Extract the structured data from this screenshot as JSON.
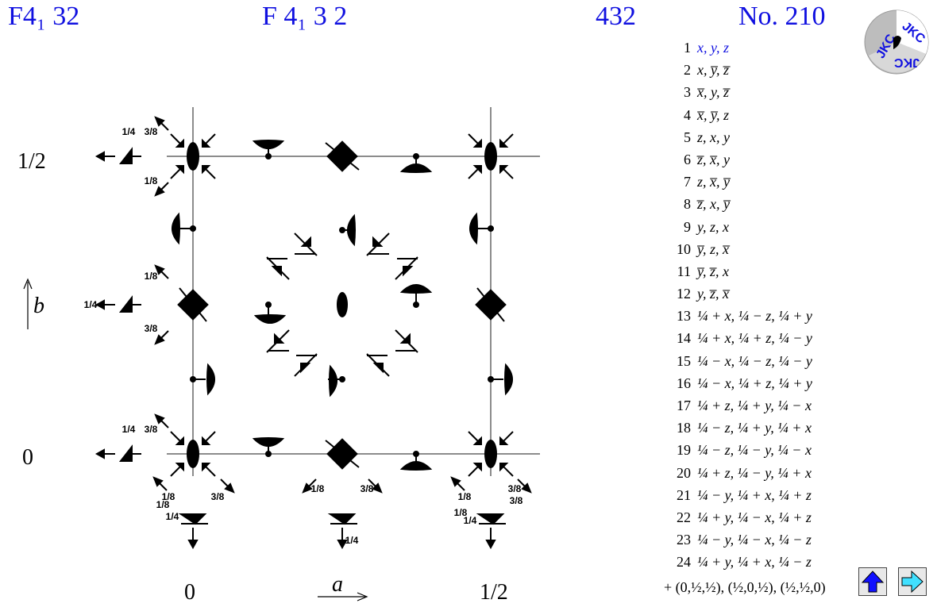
{
  "header": {
    "short_symbol": "F4₁ 32",
    "full_symbol": "F 4₁ 3 2",
    "point_group": "432",
    "number": "No. 210"
  },
  "logo": {
    "text": "JKC",
    "colors": [
      "#c0c0c0",
      "#1010e0"
    ]
  },
  "diagram": {
    "left_labels": [
      "1/2",
      "b",
      "0"
    ],
    "bottom_labels": [
      "0",
      "a",
      "1/2"
    ],
    "height_labels": [
      "1/4",
      "3/8",
      "1/8",
      "1/8",
      "3/8",
      "1/4",
      "1/4",
      "3/8",
      "1/8",
      "3/8",
      "1/8",
      "3/8",
      "1/8",
      "1/4",
      "3/8",
      "1/8",
      "1/4",
      "1/8",
      "3/8",
      "1/4"
    ]
  },
  "operations": [
    {
      "n": "1",
      "text": "x, y, z"
    },
    {
      "n": "2",
      "text": "x, y̅, z̅"
    },
    {
      "n": "3",
      "text": "x̅, y, z̅"
    },
    {
      "n": "4",
      "text": "x̅, y̅, z"
    },
    {
      "n": "5",
      "text": "z, x, y"
    },
    {
      "n": "6",
      "text": "z̅, x̅, y"
    },
    {
      "n": "7",
      "text": "z, x̅, y̅"
    },
    {
      "n": "8",
      "text": "z̅, x, y̅"
    },
    {
      "n": "9",
      "text": "y, z, x"
    },
    {
      "n": "10",
      "text": "y̅, z, x̅"
    },
    {
      "n": "11",
      "text": "y̅, z̅, x"
    },
    {
      "n": "12",
      "text": "y, z̅, x̅"
    },
    {
      "n": "13",
      "text": "¼ + x, ¼ − z, ¼ + y"
    },
    {
      "n": "14",
      "text": "¼ + x, ¼ + z, ¼ − y"
    },
    {
      "n": "15",
      "text": "¼ − x, ¼ − z, ¼ − y"
    },
    {
      "n": "16",
      "text": "¼ − x, ¼ + z, ¼ + y"
    },
    {
      "n": "17",
      "text": "¼ + z, ¼ + y, ¼ − x"
    },
    {
      "n": "18",
      "text": "¼ − z, ¼ + y, ¼ + x"
    },
    {
      "n": "19",
      "text": "¼ − z, ¼ − y, ¼ − x"
    },
    {
      "n": "20",
      "text": "¼ + z, ¼ − y, ¼ + x"
    },
    {
      "n": "21",
      "text": "¼ − y, ¼ + x, ¼ + z"
    },
    {
      "n": "22",
      "text": "¼ + y, ¼ − x, ¼ + z"
    },
    {
      "n": "23",
      "text": "¼ − y, ¼ − x, ¼ − z"
    },
    {
      "n": "24",
      "text": "¼ + y, ¼ + x, ¼ − z"
    }
  ],
  "centering": "+ (0,½,½), (½,0,½), (½,½,0)",
  "nav": {
    "up_icon": "up-arrow-icon",
    "next_icon": "right-arrow-icon",
    "up_color": "#1010ff",
    "next_color": "#40e0ff"
  }
}
